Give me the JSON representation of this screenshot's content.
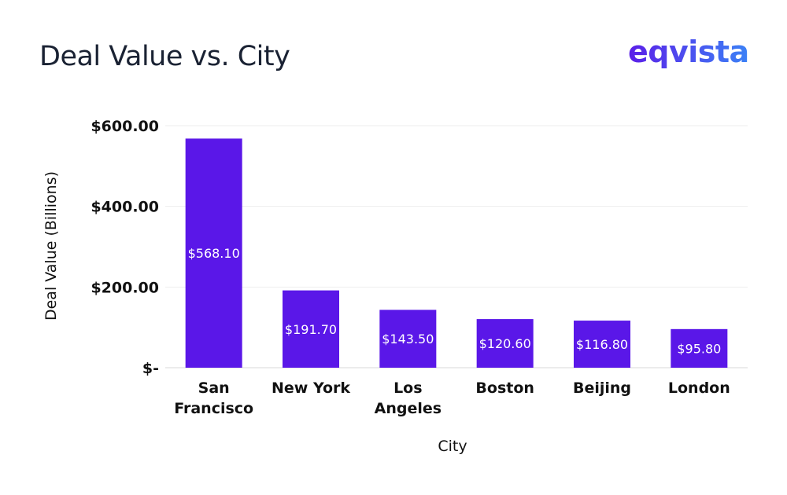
{
  "logo_text": "eqvista",
  "chart_data": {
    "type": "bar",
    "title": "Deal Value vs. City",
    "xlabel": "City",
    "ylabel": "Deal Value (Billions)",
    "categories": [
      [
        "San",
        "Francisco"
      ],
      [
        "New York"
      ],
      [
        "Los",
        "Angeles"
      ],
      [
        "Boston"
      ],
      [
        "Beijing"
      ],
      [
        "London"
      ]
    ],
    "values": [
      568.1,
      191.7,
      143.5,
      120.6,
      116.8,
      95.8
    ],
    "data_labels": [
      "$568.10",
      "$191.70",
      "$143.50",
      "$120.60",
      "$116.80",
      "$95.80"
    ],
    "yticks": [
      0,
      200,
      400,
      600
    ],
    "ytick_labels": [
      "$-",
      "$200.00",
      "$400.00",
      "$600.00"
    ],
    "ylim": [
      0,
      600
    ],
    "grid": true,
    "bar_color": "#5a17e8"
  }
}
